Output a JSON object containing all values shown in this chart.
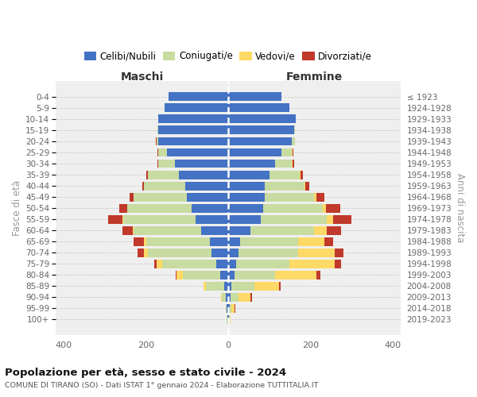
{
  "age_groups": [
    "0-4",
    "5-9",
    "10-14",
    "15-19",
    "20-24",
    "25-29",
    "30-34",
    "35-39",
    "40-44",
    "45-49",
    "50-54",
    "55-59",
    "60-64",
    "65-69",
    "70-74",
    "75-79",
    "80-84",
    "85-89",
    "90-94",
    "95-99",
    "100+"
  ],
  "birth_years": [
    "2019-2023",
    "2014-2018",
    "2009-2013",
    "2004-2008",
    "1999-2003",
    "1994-1998",
    "1989-1993",
    "1984-1988",
    "1979-1983",
    "1974-1978",
    "1969-1973",
    "1964-1968",
    "1959-1963",
    "1954-1958",
    "1949-1953",
    "1944-1948",
    "1939-1943",
    "1934-1938",
    "1929-1933",
    "1924-1928",
    "≤ 1923"
  ],
  "males_celibi": [
    145,
    155,
    170,
    170,
    170,
    150,
    130,
    120,
    105,
    100,
    90,
    80,
    65,
    45,
    40,
    30,
    20,
    10,
    5,
    3,
    2
  ],
  "males_coniugati": [
    0,
    0,
    0,
    3,
    5,
    20,
    40,
    75,
    100,
    130,
    155,
    175,
    165,
    155,
    155,
    130,
    90,
    45,
    10,
    3,
    1
  ],
  "males_vedovi": [
    0,
    0,
    0,
    0,
    0,
    0,
    0,
    0,
    0,
    0,
    1,
    2,
    3,
    5,
    10,
    15,
    15,
    5,
    2,
    0,
    0
  ],
  "males_divorziati": [
    0,
    0,
    0,
    0,
    1,
    2,
    2,
    5,
    5,
    10,
    20,
    35,
    25,
    25,
    15,
    5,
    3,
    0,
    0,
    0,
    0
  ],
  "females_nubili": [
    130,
    150,
    165,
    160,
    155,
    130,
    115,
    100,
    90,
    90,
    85,
    80,
    55,
    30,
    25,
    20,
    15,
    8,
    5,
    3,
    2
  ],
  "females_coniugate": [
    0,
    0,
    0,
    2,
    8,
    25,
    40,
    75,
    95,
    120,
    145,
    160,
    155,
    140,
    145,
    130,
    100,
    55,
    20,
    5,
    1
  ],
  "females_vedove": [
    0,
    0,
    0,
    0,
    0,
    1,
    1,
    2,
    2,
    5,
    8,
    15,
    30,
    65,
    90,
    110,
    100,
    60,
    30,
    8,
    2
  ],
  "females_divorziate": [
    0,
    0,
    0,
    0,
    0,
    2,
    5,
    5,
    10,
    20,
    35,
    45,
    35,
    20,
    20,
    15,
    10,
    5,
    3,
    2,
    0
  ],
  "color_celibi": "#4472c4",
  "color_coniugati": "#c8dba0",
  "color_vedovi": "#ffd966",
  "color_divorziati": "#c0392b",
  "title": "Popolazione per età, sesso e stato civile - 2024",
  "subtitle": "COMUNE DI TIRANO (SO) - Dati ISTAT 1° gennaio 2024 - Elaborazione TUTTITALIA.IT",
  "label_maschi": "Maschi",
  "label_femmine": "Femmine",
  "label_fasce": "Fasce di età",
  "label_anni": "Anni di nascita",
  "xlim": 420,
  "legend_labels": [
    "Celibi/Nubili",
    "Coniugati/e",
    "Vedovi/e",
    "Divorziati/e"
  ]
}
